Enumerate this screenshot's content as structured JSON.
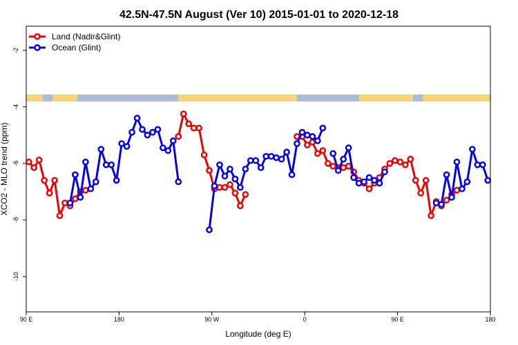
{
  "chart_data": {
    "type": "line",
    "title": "42.5N-47.5N August (Ver 10)   2015-01-01 to 2020-12-18",
    "x_label": "Longitude (deg E)",
    "y_label": "XCO2 - MLO trend (ppm)",
    "legend": "top-left",
    "xlim": [
      90,
      540
    ],
    "ylim": [
      -11.25,
      -1.15
    ],
    "xticks": [
      {
        "value": 90,
        "label": "90 E"
      },
      180,
      {
        "value": 270,
        "label": "90 W"
      },
      {
        "value": 360,
        "label": "0"
      },
      {
        "value": 450,
        "label": "90 E"
      },
      {
        "value": 540,
        "label": "180"
      }
    ],
    "yticks": [
      -2,
      -4,
      -6,
      -8,
      -10
    ],
    "x": [
      92.5,
      97.5,
      102.5,
      107.5,
      112.5,
      117.5,
      122.5,
      127.5,
      132.5,
      137.5,
      142.5,
      147.5,
      152.5,
      157.5,
      162.5,
      167.5,
      172.5,
      177.5,
      182.5,
      187.5,
      192.5,
      197.5,
      202.5,
      207.5,
      212.5,
      217.5,
      222.5,
      227.5,
      232.5,
      237.5,
      242.5,
      247.5,
      252.5,
      257.5,
      262.5,
      267.5,
      272.5,
      277.5,
      282.5,
      287.5,
      292.5,
      297.5,
      302.5,
      307.5,
      312.5,
      317.5,
      322.5,
      327.5,
      332.5,
      337.5,
      342.5,
      347.5,
      352.5,
      357.5,
      362.5,
      367.5,
      372.5,
      377.5,
      382.5,
      387.5,
      392.5,
      397.5,
      402.5,
      407.5,
      412.5,
      417.5,
      422.5,
      427.5,
      432.5,
      437.5,
      442.5,
      447.5,
      452.5,
      457.5,
      462.5,
      467.5,
      472.5,
      477.5,
      482.5,
      487.5,
      492.5,
      497.5,
      502.5,
      507.5,
      512.5,
      517.5,
      522.5,
      527.5,
      532.5,
      537.5
    ],
    "series": [
      {
        "name": "Land (Nadir&Glint)",
        "color": "#ee0000",
        "values": [
          -5.95,
          -6.15,
          -5.88,
          -6.6,
          -7.05,
          -6.6,
          -7.85,
          -7.4,
          -7.5,
          -7.25,
          -7.0,
          -6.95,
          null,
          null,
          null,
          null,
          null,
          null,
          null,
          null,
          null,
          null,
          null,
          null,
          null,
          null,
          null,
          null,
          null,
          -5.05,
          -4.25,
          -4.6,
          -4.75,
          -4.75,
          -5.7,
          -6.25,
          -6.9,
          -6.85,
          -6.85,
          -6.75,
          -7.05,
          -7.5,
          -7.1,
          null,
          null,
          null,
          null,
          null,
          null,
          null,
          null,
          null,
          -5.05,
          -5.05,
          -5.35,
          -5.25,
          -5.65,
          -5.55,
          -6.0,
          -6.1,
          -6.15,
          -6.15,
          -6.1,
          -6.3,
          -6.6,
          -6.7,
          -6.9,
          -6.7,
          -6.5,
          -6.2,
          -6.0,
          -5.9,
          -5.95,
          -6.05,
          -5.85,
          -6.6,
          -7.05,
          -6.6,
          -7.85,
          -7.35,
          -7.5,
          -7.3,
          -7.1,
          -6.95,
          null,
          null,
          null,
          null,
          null,
          null
        ]
      },
      {
        "name": "Ocean (Glint)",
        "color": "#0000ee",
        "values": [
          null,
          null,
          null,
          null,
          null,
          null,
          null,
          null,
          -7.4,
          -6.4,
          -7.2,
          -5.95,
          -6.9,
          -6.65,
          -5.5,
          -6.05,
          -6.05,
          -6.6,
          -5.3,
          -5.4,
          -4.9,
          -4.4,
          -4.8,
          -5.0,
          -4.9,
          -4.8,
          -5.45,
          -5.55,
          -5.2,
          -6.65,
          null,
          null,
          null,
          null,
          null,
          -8.35,
          -6.8,
          -6.05,
          -6.45,
          -6.2,
          -6.55,
          -6.85,
          -6.2,
          -5.9,
          -5.9,
          -6.15,
          -5.75,
          -5.75,
          -5.8,
          -5.85,
          -5.6,
          -6.4,
          -5.3,
          -4.9,
          -5.0,
          -5.05,
          -5.2,
          -4.75,
          null,
          -5.65,
          -6.25,
          -5.85,
          -5.45,
          -6.5,
          -6.7,
          -6.65,
          -6.5,
          -6.6,
          -6.7,
          -6.3,
          null,
          null,
          null,
          null,
          null,
          null,
          null,
          null,
          null,
          -7.4,
          -7.45,
          -6.4,
          -7.2,
          -5.95,
          -6.9,
          -6.65,
          -5.5,
          -6.05,
          -6.05,
          -6.6
        ]
      }
    ]
  }
}
